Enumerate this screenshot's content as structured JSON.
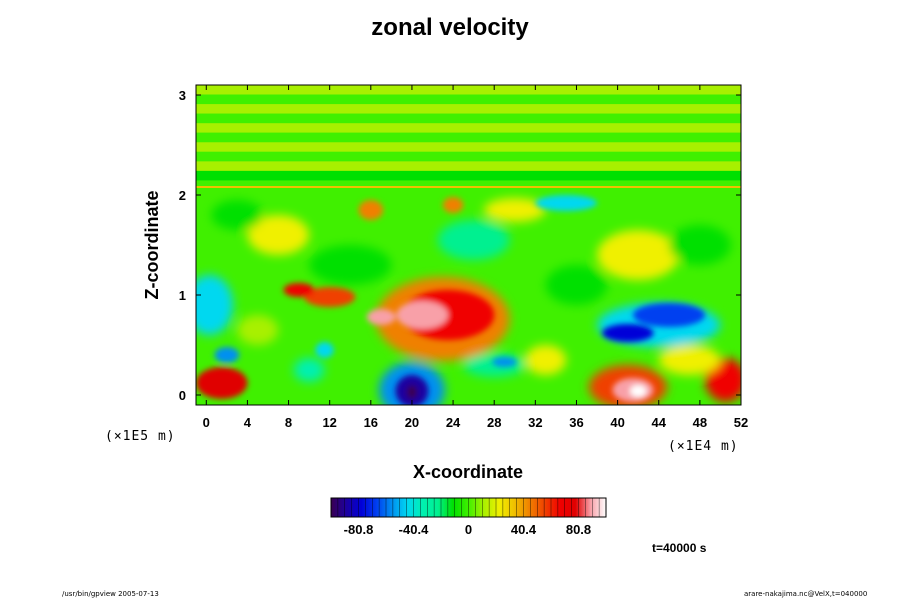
{
  "chart_data": {
    "type": "heatmap",
    "title": "zonal velocity",
    "xlabel": "X-coordinate",
    "ylabel": "Z-coordinate",
    "x_unit": "(×1E4 m)",
    "y_unit": "(×1E5 m)",
    "xlim": [
      -1,
      52
    ],
    "ylim": [
      -0.1,
      3.1
    ],
    "x_ticks": [
      "0",
      "4",
      "8",
      "12",
      "16",
      "20",
      "24",
      "28",
      "32",
      "36",
      "40",
      "44",
      "48",
      "52"
    ],
    "y_ticks": [
      "0",
      "1",
      "2",
      "3"
    ],
    "x_tick_values": [
      0,
      4,
      8,
      12,
      16,
      20,
      24,
      28,
      32,
      36,
      40,
      44,
      48,
      52
    ],
    "y_tick_values": [
      0,
      1,
      2,
      3
    ],
    "colorbar": {
      "min": -101,
      "max": 101,
      "ticks": [
        "-80.8",
        "-40.4",
        "0",
        "40.4",
        "80.8"
      ],
      "tick_values": [
        -80.8,
        -40.4,
        0,
        40.4,
        80.8
      ],
      "colors": [
        "#3a0050",
        "#1c00a0",
        "#0000d8",
        "#0040f0",
        "#0090f0",
        "#00d8f0",
        "#00f0b0",
        "#00f090",
        "#00e000",
        "#40f000",
        "#a8f000",
        "#f0f000",
        "#f0c000",
        "#f08000",
        "#f04000",
        "#f00000",
        "#e00000",
        "#f8a0a8",
        "#ffffff"
      ]
    },
    "features": [
      {
        "name": "upper-bands",
        "z_range": [
          2.05,
          3.1
        ],
        "value_range": [
          -8,
          12
        ]
      },
      {
        "name": "positive-jet",
        "x": 23,
        "z": 0.75,
        "value": 80
      },
      {
        "name": "negative-surface",
        "x": 20,
        "z": 0.05,
        "value": -100
      },
      {
        "name": "positive-surface-right",
        "x": 41,
        "z": 0.05,
        "value": 95
      },
      {
        "name": "positive-surface-left",
        "x": 1,
        "z": 0.1,
        "value": 90
      },
      {
        "name": "negative-right-mid",
        "x": 44,
        "z": 0.7,
        "value": -70
      },
      {
        "name": "negative-upper-right",
        "x": 35,
        "z": 1.9,
        "value": -55
      },
      {
        "name": "negative-left-mid",
        "x": 0.5,
        "z": 0.9,
        "value": -50
      }
    ]
  },
  "annotations": {
    "time": "t=40000 s",
    "program": "/usr/bin/gpview 2005-07-13",
    "source": "arare-nakajima.nc@VelX,t=040000"
  }
}
